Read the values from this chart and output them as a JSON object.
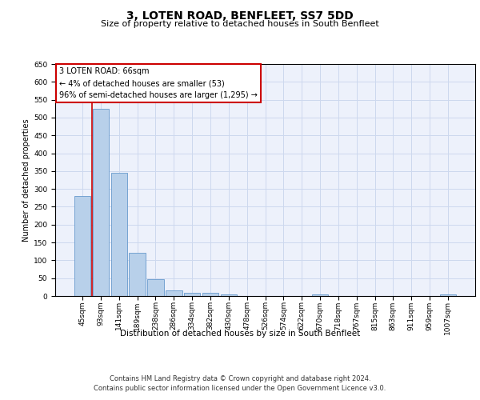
{
  "title": "3, LOTEN ROAD, BENFLEET, SS7 5DD",
  "subtitle": "Size of property relative to detached houses in South Benfleet",
  "xlabel": "Distribution of detached houses by size in South Benfleet",
  "ylabel": "Number of detached properties",
  "categories": [
    "45sqm",
    "93sqm",
    "141sqm",
    "189sqm",
    "238sqm",
    "286sqm",
    "334sqm",
    "382sqm",
    "430sqm",
    "478sqm",
    "526sqm",
    "574sqm",
    "622sqm",
    "670sqm",
    "718sqm",
    "767sqm",
    "815sqm",
    "863sqm",
    "911sqm",
    "959sqm",
    "1007sqm"
  ],
  "values": [
    280,
    525,
    345,
    120,
    47,
    15,
    10,
    8,
    5,
    0,
    0,
    0,
    0,
    5,
    0,
    0,
    0,
    0,
    0,
    0,
    5
  ],
  "bar_color": "#b8d0ea",
  "bar_edge_color": "#6699cc",
  "annotation_line1": "3 LOTEN ROAD: 66sqm",
  "annotation_line2": "← 4% of detached houses are smaller (53)",
  "annotation_line3": "96% of semi-detached houses are larger (1,295) →",
  "annotation_box_facecolor": "#ffffff",
  "annotation_box_edgecolor": "#cc0000",
  "vline_x": 0.5,
  "vline_color": "#cc0000",
  "ylim": [
    0,
    650
  ],
  "yticks": [
    0,
    50,
    100,
    150,
    200,
    250,
    300,
    350,
    400,
    450,
    500,
    550,
    600,
    650
  ],
  "grid_color": "#cdd8ee",
  "background_color": "#edf1fb",
  "footer_line1": "Contains HM Land Registry data © Crown copyright and database right 2024.",
  "footer_line2": "Contains public sector information licensed under the Open Government Licence v3.0.",
  "title_fontsize": 10,
  "subtitle_fontsize": 8,
  "ylabel_fontsize": 7,
  "xlabel_fontsize": 7.5,
  "tick_fontsize": 6.5,
  "annotation_fontsize": 7,
  "footer_fontsize": 6
}
